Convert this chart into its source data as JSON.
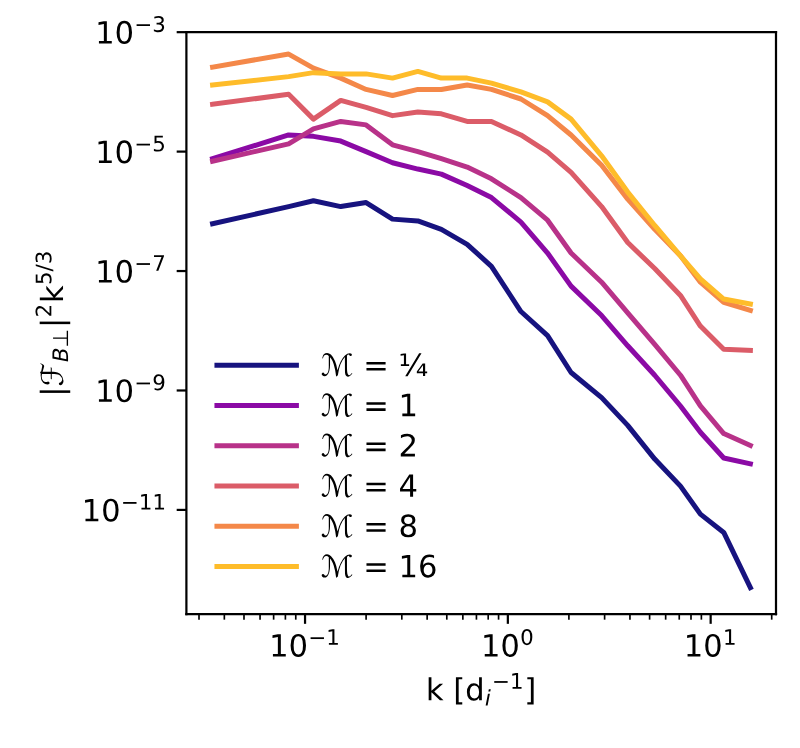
{
  "chart_data": {
    "type": "line",
    "log": "xy",
    "xlabel": "k [d$_{i}$$^{−1}$]",
    "ylabel": "|ℱ$_{B⊥}$|$^{2}$k$^{5/3}$",
    "x": [
      0.035,
      0.083,
      0.11,
      0.15,
      0.2,
      0.27,
      0.36,
      0.47,
      0.63,
      0.83,
      1.16,
      1.57,
      2.05,
      2.9,
      3.9,
      5.3,
      7.1,
      8.9,
      11.6,
      15.7
    ],
    "xlim": [
      0.026,
      21
    ],
    "xticks": [
      {
        "value": 0.1,
        "label": "10$^{−1}$"
      },
      {
        "value": 1,
        "label": "10$^{0}$"
      },
      {
        "value": 10,
        "label": "10$^{1}$"
      }
    ],
    "ylim": [
      1.8e-13,
      0.001
    ],
    "yticks": [
      {
        "value": 1e-11,
        "label": "10$^{−11}$"
      },
      {
        "value": 1e-09,
        "label": "10$^{−9}$"
      },
      {
        "value": 1e-07,
        "label": "10$^{−7}$"
      },
      {
        "value": 1e-05,
        "label": "10$^{−5}$"
      },
      {
        "value": 0.001,
        "label": "10$^{−3}$"
      }
    ],
    "grid": false,
    "legend": "bottom left",
    "marker": "none",
    "line_style": "solid",
    "series": [
      {
        "name": "ℳ = ¼",
        "color": "#17137f",
        "values": [
          6.2e-07,
          1.2e-06,
          1.5e-06,
          1.2e-06,
          1.4e-06,
          7.4e-07,
          6.9e-07,
          5e-07,
          2.8e-07,
          1.2e-07,
          2.1e-08,
          8.3e-09,
          2e-09,
          7.6e-10,
          2.6e-10,
          7.1e-11,
          2.5e-11,
          8.5e-12,
          4.2e-12,
          5e-13
        ]
      },
      {
        "name": "ℳ = 1",
        "color": "#8b0aa5",
        "values": [
          7.6e-06,
          1.9e-05,
          1.8e-05,
          1.5e-05,
          1e-05,
          6.5e-06,
          5.1e-06,
          4.2e-06,
          2.7e-06,
          1.7e-06,
          6.6e-07,
          2e-07,
          5.6e-08,
          1.8e-08,
          5.6e-09,
          1.8e-09,
          5.5e-10,
          2e-10,
          7.4e-11,
          5.9e-11
        ]
      },
      {
        "name": "ℳ = 2",
        "color": "#b83289",
        "values": [
          6.9e-06,
          1.35e-05,
          2.4e-05,
          3.2e-05,
          2.8e-05,
          1.3e-05,
          1e-05,
          7.6e-06,
          5.5e-06,
          3.5e-06,
          1.7e-06,
          7.1e-07,
          2e-07,
          6.5e-08,
          2e-08,
          5.9e-09,
          1.8e-09,
          5.5e-10,
          1.9e-10,
          1.2e-10
        ]
      },
      {
        "name": "ℳ = 4",
        "color": "#db5c68",
        "values": [
          6.2e-05,
          9.1e-05,
          3.5e-05,
          7.2e-05,
          5.5e-05,
          4e-05,
          4.6e-05,
          4.3e-05,
          3.2e-05,
          3.2e-05,
          1.9e-05,
          9.8e-06,
          4.5e-06,
          1.2e-06,
          3e-07,
          1.1e-07,
          3.9e-08,
          1.2e-08,
          4.9e-09,
          4.7e-09
        ]
      },
      {
        "name": "ℳ = 8",
        "color": "#f48849",
        "values": [
          0.00026,
          0.00043,
          0.00025,
          0.00017,
          0.00011,
          8.7e-05,
          0.00011,
          0.00011,
          0.00013,
          0.00011,
          7.6e-05,
          4e-05,
          1.9e-05,
          5.9e-06,
          1.6e-06,
          5e-07,
          1.8e-07,
          6.5e-08,
          3e-08,
          2.2e-08
        ]
      },
      {
        "name": "ℳ = 16",
        "color": "#febc2a",
        "values": [
          0.00013,
          0.00018,
          0.00021,
          0.0002,
          0.0002,
          0.00017,
          0.00022,
          0.00017,
          0.00017,
          0.00014,
          0.0001,
          6.8e-05,
          3.5e-05,
          8.5e-06,
          2.1e-06,
          5.8e-07,
          1.8e-07,
          7.4e-08,
          3.4e-08,
          2.8e-08
        ]
      }
    ]
  }
}
